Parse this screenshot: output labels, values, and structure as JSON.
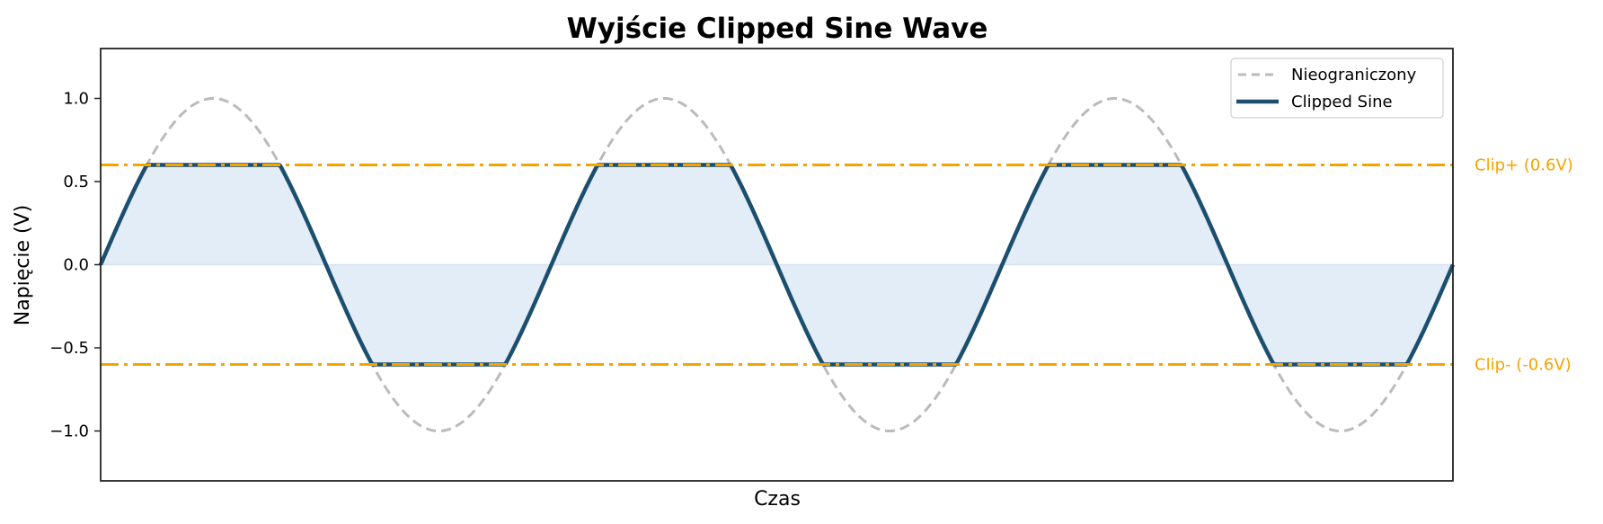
{
  "chart_data": {
    "type": "line",
    "title": "Wyjście Clipped Sine Wave",
    "xlabel": "Czas",
    "ylabel": "Napięcie (V)",
    "ylim": [
      -1.3,
      1.3
    ],
    "xlim": [
      0,
      18.8496
    ],
    "x_ticks_visible": false,
    "yticks": [
      1.0,
      0.5,
      0.0,
      -0.5,
      -1.0
    ],
    "ytick_labels": [
      "1.0",
      "0.5",
      "0.0",
      "−0.5",
      "−1.0"
    ],
    "grid": false,
    "legend_position": "upper right",
    "cycles": 3,
    "amplitude": 1.0,
    "series": [
      {
        "name": "Nieograniczony",
        "kind": "sine",
        "amplitude": 1.0,
        "style": "dashed",
        "color": "#bbbbbb"
      },
      {
        "name": "Clipped Sine",
        "kind": "clipped_sine",
        "amplitude": 1.0,
        "clip_high": 0.6,
        "clip_low": -0.6,
        "style": "solid",
        "color": "#1c4e6e",
        "fill_to_zero": true,
        "fill_color": "#e3edf8"
      }
    ],
    "reference_lines": [
      {
        "y": 0.6,
        "label": "Clip+ (0.6V)",
        "style": "dashdot",
        "color": "#f5a300"
      },
      {
        "y": -0.6,
        "label": "Clip- (-0.6V)",
        "style": "dashdot",
        "color": "#f5a300"
      }
    ]
  },
  "legend": {
    "items": [
      {
        "label": "Nieograniczony",
        "style": "dashed",
        "color": "#bbbbbb"
      },
      {
        "label": "Clipped Sine",
        "style": "solid",
        "color": "#1c4e6e"
      }
    ]
  },
  "colors": {
    "clipped": "#1c4e6e",
    "unclipped": "#bbbbbb",
    "fill": "#e3edf8",
    "clip_lines": "#f5a300",
    "axes": "#222222"
  }
}
